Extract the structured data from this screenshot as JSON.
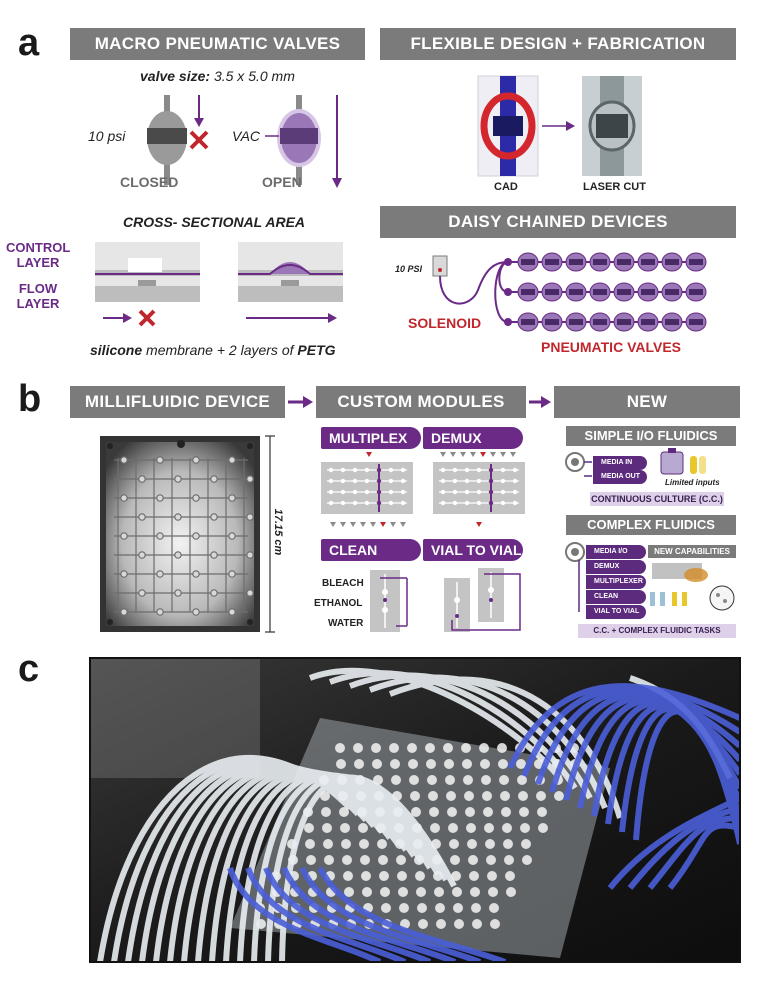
{
  "panel_a": {
    "letter": "a",
    "macro_header": "MACRO PNEUMATIC VALVES",
    "valve_size_label": "valve size:",
    "valve_size_value": "3.5 x 5.0 mm",
    "pressure_label": "10 psi",
    "vac_label": "VAC",
    "closed_label": "CLOSED",
    "open_label": "OPEN",
    "cross_section_title": "CROSS- SECTIONAL AREA",
    "control_layer": "CONTROL LAYER",
    "flow_layer": "FLOW LAYER",
    "membrane_caption_a": "silicone",
    "membrane_caption_b": " membrane + 2 layers of ",
    "membrane_caption_c": "PETG",
    "flex_header": "FLEXIBLE DESIGN + FABRICATION",
    "cad_label": "CAD",
    "laser_label": "LASER CUT",
    "daisy_header": "DAISY CHAINED DEVICES",
    "psi_label": "10 PSI",
    "solenoid_label": "SOLENOID",
    "pneumatic_valves_label": "PNEUMATIC VALVES"
  },
  "panel_b": {
    "letter": "b",
    "device_header": "MILLIFLUIDIC DEVICE",
    "dimension_label": "17.15 cm",
    "modules_header": "CUSTOM MODULES",
    "multiplex": "MULTIPLEX",
    "demux": "DEMUX",
    "clean": "CLEAN",
    "vial_to_vial": "VIAL TO VIAL",
    "bleach": "BLEACH",
    "ethanol": "ETHANOL",
    "water": "WATER",
    "functionality_header": "NEW FUNCTIONALITY",
    "simple_header": "SIMPLE I/O FLUIDICS",
    "media_in": "MEDIA IN",
    "media_out": "MEDIA OUT",
    "limited_inputs": "Limited inputs",
    "continuous_culture": "CONTINUOUS CULTURE (C.C.)",
    "complex_header": "COMPLEX FLUIDICS",
    "complex_items": [
      "MEDIA I/O",
      "DEMUX",
      "MULTIPLEXER",
      "CLEAN",
      "VIAL TO VIAL"
    ],
    "new_capabilities": "NEW CAPABILITIES",
    "complex_tasks": "C.C. + COMPLEX FLUIDIC TASKS"
  },
  "panel_c": {
    "letter": "c"
  },
  "colors": {
    "purple": "#6a2a86",
    "header_gray": "#7b7b7b",
    "red": "#c0272d",
    "lilac": "#ddd0e8",
    "tube_blue": "#4a5fd8"
  }
}
